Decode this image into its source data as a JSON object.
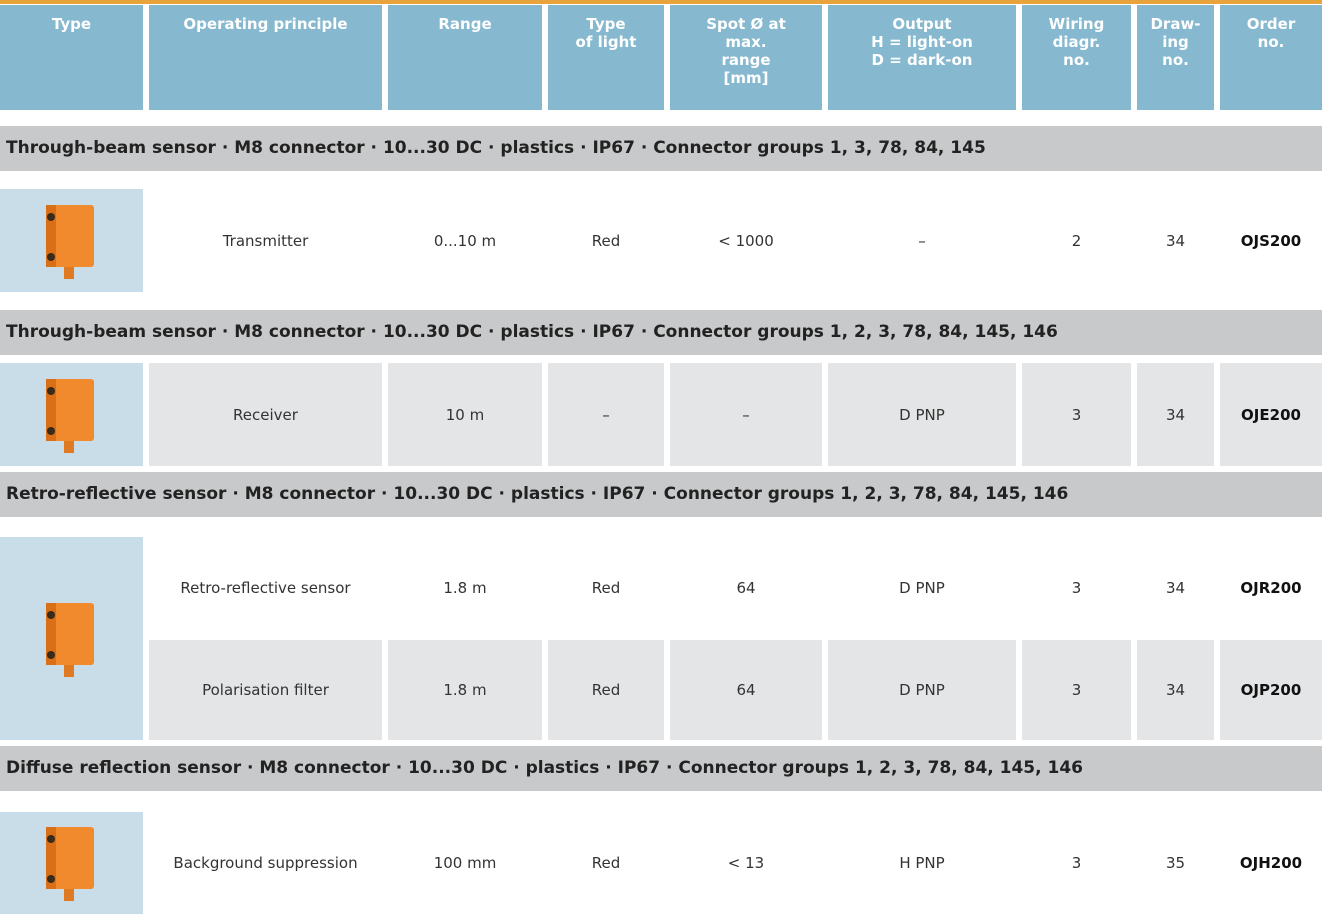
{
  "header": [
    "Type",
    "Operating principle",
    "Range",
    "Type\nof light",
    "Spot Ø at\nmax.\nrange\n[mm]",
    "Output\nH = light-on\nD = dark-on",
    "Wiring\ndiagr.\nno.",
    "Draw-\ning\nno.",
    "Order\nno."
  ],
  "sections": [
    {
      "title": "Through-beam sensor · M8 connector · 10...30 DC · plastics · IP67 · Connector groups 1, 3, 78, 84, 145",
      "rows": [
        [
          "Transmitter",
          "0...10 m",
          "Red",
          "< 1000",
          "–",
          "2",
          "34",
          "OJS200"
        ]
      ]
    },
    {
      "title": "Through-beam sensor · M8 connector · 10...30 DC · plastics · IP67 · Connector groups 1, 2, 3, 78, 84, 145, 146",
      "rows": [
        [
          "Receiver",
          "10 m",
          "–",
          "–",
          "D PNP",
          "3",
          "34",
          "OJE200"
        ]
      ]
    },
    {
      "title": "Retro-reflective sensor · M8 connector · 10...30 DC · plastics · IP67 · Connector groups 1, 2, 3, 78, 84, 145, 146",
      "rows": [
        [
          "Retro-reflective sensor",
          "1.8 m",
          "Red",
          "64",
          "D PNP",
          "3",
          "34",
          "OJR200"
        ],
        [
          "Polarisation filter",
          "1.8 m",
          "Red",
          "64",
          "D PNP",
          "3",
          "34",
          "OJP200"
        ]
      ]
    },
    {
      "title": "Diffuse reflection sensor · M8 connector · 10...30 DC · plastics · IP67 · Connector groups 1, 2, 3, 78, 84, 145, 146",
      "rows": [
        [
          "Background suppression",
          "100 mm",
          "Red",
          "< 13",
          "H PNP",
          "3",
          "35",
          "OJH200"
        ]
      ]
    }
  ]
}
